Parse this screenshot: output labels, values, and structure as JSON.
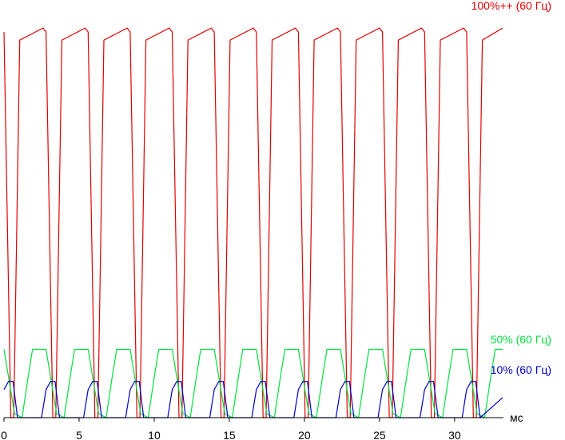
{
  "chart_data": {
    "type": "line",
    "x_label": "мс",
    "xlim": [
      0,
      33.2
    ],
    "ylim": [
      0,
      100
    ],
    "xticks": [
      0,
      5,
      10,
      15,
      20,
      25,
      30
    ],
    "series": [
      {
        "name": "100%++ (60 Гц)",
        "color": "#e00000",
        "x": [
          0,
          0.45,
          0.65,
          1.05,
          2.6,
          2.8,
          3.25,
          3.45,
          3.85,
          5.4,
          5.6,
          6.05,
          6.25,
          6.65,
          8.2,
          8.4,
          8.85,
          9.05,
          9.45,
          11,
          11.2,
          11.65,
          11.85,
          12.25,
          13.8,
          14,
          14.45,
          14.65,
          15.05,
          16.6,
          16.8,
          17.25,
          17.45,
          17.85,
          19.4,
          19.6,
          20.05,
          20.25,
          20.65,
          22.2,
          22.4,
          22.85,
          23.05,
          23.45,
          25,
          25.2,
          25.65,
          25.85,
          26.25,
          27.8,
          28,
          28.45,
          28.65,
          29.05,
          30.6,
          30.8,
          31.25,
          31.45,
          31.85,
          33.2
        ],
        "values": [
          96,
          0,
          0,
          94,
          97,
          96,
          0,
          0,
          94,
          97,
          96,
          0,
          0,
          94,
          97,
          96,
          0,
          0,
          94,
          97,
          96,
          0,
          0,
          94,
          97,
          96,
          0,
          0,
          94,
          97,
          96,
          0,
          0,
          94,
          97,
          96,
          0,
          0,
          94,
          97,
          96,
          0,
          0,
          94,
          97,
          96,
          0,
          0,
          94,
          97,
          96,
          0,
          0,
          94,
          97,
          96,
          0,
          0,
          94,
          97
        ]
      },
      {
        "name": "50% (60 Гц)",
        "color": "#00e040",
        "x": [
          0,
          0.7,
          1.2,
          1.6,
          1.9,
          2.8,
          3.5,
          4,
          4.4,
          4.7,
          5.6,
          6.3,
          6.8,
          7.2,
          7.5,
          8.4,
          9.1,
          9.6,
          10,
          10.3,
          11.2,
          11.9,
          12.4,
          12.8,
          13.1,
          14,
          14.7,
          15.2,
          15.6,
          15.9,
          16.8,
          17.5,
          18,
          18.4,
          18.7,
          19.6,
          20.3,
          20.8,
          21.2,
          21.5,
          22.4,
          23.1,
          23.6,
          24,
          24.3,
          25.2,
          25.9,
          26.4,
          26.8,
          27.1,
          28,
          28.7,
          29.2,
          29.6,
          29.9,
          30.8,
          31.5,
          32,
          32.4,
          32.7,
          33.2
        ],
        "values": [
          17,
          1,
          0,
          10,
          17,
          17,
          1,
          0,
          10,
          17,
          17,
          1,
          0,
          10,
          17,
          17,
          1,
          0,
          10,
          17,
          17,
          1,
          0,
          10,
          17,
          17,
          1,
          0,
          10,
          17,
          17,
          1,
          0,
          10,
          17,
          17,
          1,
          0,
          10,
          17,
          17,
          1,
          0,
          10,
          17,
          17,
          1,
          0,
          10,
          17,
          17,
          1,
          0,
          10,
          17,
          17,
          1,
          0,
          10,
          17,
          17
        ]
      },
      {
        "name": "10% (60 Гц)",
        "color": "#0000c0",
        "x": [
          0,
          0.3,
          0.6,
          0.9,
          2.5,
          2.8,
          3.1,
          3.4,
          3.7,
          5.3,
          5.6,
          5.9,
          6.2,
          6.5,
          8.1,
          8.4,
          8.7,
          9,
          9.3,
          10.9,
          11.2,
          11.5,
          11.8,
          12.1,
          13.7,
          14,
          14.3,
          14.6,
          14.9,
          16.5,
          16.8,
          17.1,
          17.4,
          17.7,
          19.3,
          19.6,
          19.9,
          20.2,
          20.5,
          22.1,
          22.4,
          22.7,
          23,
          23.3,
          24.9,
          25.2,
          25.5,
          25.8,
          26.1,
          27.7,
          28,
          28.3,
          28.6,
          28.9,
          30.5,
          30.8,
          31.1,
          31.4,
          31.7,
          33.2
        ],
        "values": [
          7,
          9,
          9,
          0,
          0,
          7,
          9,
          9,
          0,
          0,
          7,
          9,
          9,
          0,
          0,
          7,
          9,
          9,
          0,
          0,
          7,
          9,
          9,
          0,
          0,
          7,
          9,
          9,
          0,
          0,
          7,
          9,
          9,
          0,
          0,
          7,
          9,
          9,
          0,
          0,
          7,
          9,
          9,
          0,
          0,
          7,
          9,
          9,
          0,
          0,
          7,
          9,
          9,
          0,
          0,
          7,
          9,
          9,
          0,
          5
        ]
      }
    ]
  }
}
